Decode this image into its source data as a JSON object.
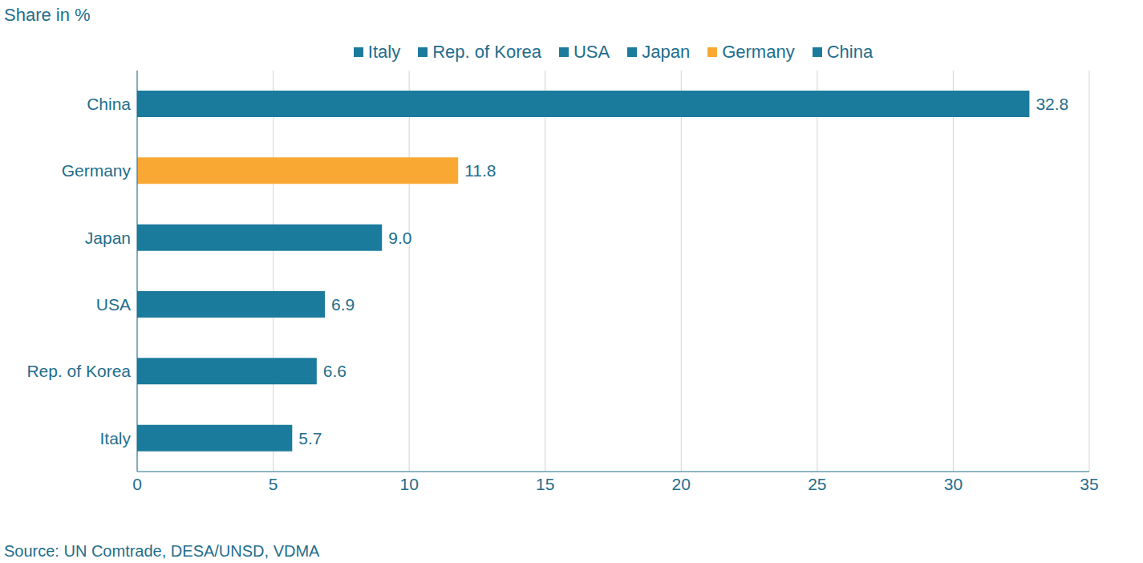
{
  "chart_data": {
    "type": "bar",
    "orientation": "horizontal",
    "title": "Share in %",
    "source": "Source: UN Comtrade, DESA/UNSD, VDMA",
    "categories": [
      "China",
      "Germany",
      "Japan",
      "USA",
      "Rep. of Korea",
      "Italy"
    ],
    "values": [
      32.8,
      11.8,
      9.0,
      6.9,
      6.6,
      5.7
    ],
    "value_labels": [
      "32.8",
      "11.8",
      "9.0",
      "6.9",
      "6.6",
      "5.7"
    ],
    "colors": [
      "#1b7b9c",
      "#f9a834",
      "#1b7b9c",
      "#1b7b9c",
      "#1b7b9c",
      "#1b7b9c"
    ],
    "xlim": [
      0,
      35
    ],
    "xticks": [
      0,
      5,
      10,
      15,
      20,
      25,
      30,
      35
    ],
    "grid": true,
    "data_labels": true,
    "legend": "top"
  }
}
